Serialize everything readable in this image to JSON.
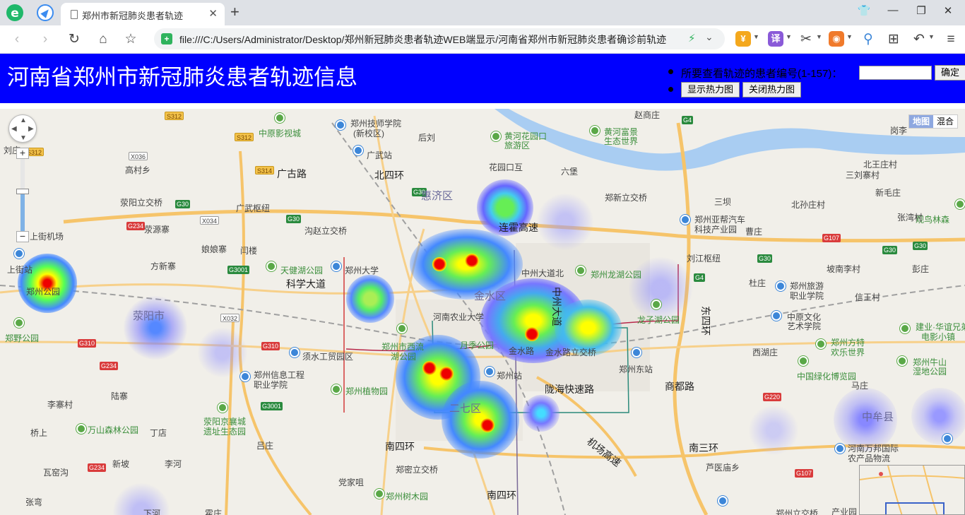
{
  "browser": {
    "tab_title": "郑州市新冠肺炎患者轨迹",
    "address": "file:///C:/Users/Administrator/Desktop/郑州新冠肺炎患者轨迹WEB端显示/河南省郑州市新冠肺炎患者确诊前轨迹"
  },
  "header": {
    "title": "河南省郑州市新冠肺炎患者轨迹信息",
    "query_label": "所要查看轨迹的患者编号(1-157)：",
    "confirm_label": "确定",
    "show_heatmap_label": "显示热力图",
    "hide_heatmap_label": "关闭热力图"
  },
  "map": {
    "maptype": {
      "map": "地图",
      "hybrid": "混合"
    },
    "labels": [
      "中原影视城",
      "郑州技师学院",
      "(新校区)",
      "后刘",
      "黄河花园口",
      "旅游区",
      "黄河富景",
      "生态世界",
      "赵商庄",
      "六堡",
      "广武站",
      "广古路",
      "北四环",
      "花园口互",
      "郑新立交桥",
      "高村乡",
      "荥阳立交桥",
      "广武枢纽",
      "惠济区",
      "连霍高速",
      "郑州亚帮汽车",
      "科技产业园",
      "观鸟林森",
      "上街机场",
      "荥源寨",
      "娘娘寨",
      "沟赵立交桥",
      "闫楼",
      "刘江枢纽",
      "上街站",
      "方新寨",
      "天健湖公园",
      "郑州大学",
      "中州大道北",
      "郑州龙湖公园",
      "坡南李村",
      "彭庄",
      "科学大道",
      "郑州旅游",
      "职业学院",
      "杜庄",
      "信王村",
      "金水区",
      "荥阳市",
      "河南农业大学",
      "龙子湖公园",
      "中原文化",
      "艺术学院",
      "西湖庄",
      "郑州市西流",
      "湖公园",
      "月季公园",
      "金水路",
      "金水路立交桥",
      "郑州方特",
      "欢乐世界",
      "郑州公园",
      "须水工贸园区",
      "郑州站",
      "郑州东站",
      "郑州信息工程",
      "职业学院",
      "郑州植物园",
      "陇海快速路",
      "商都路",
      "中国绿化博览园",
      "建业·华谊兄弟",
      "电影小镇",
      "郑州牛山",
      "湿地公园",
      "马庄",
      "陆寨",
      "李寨村",
      "二七区",
      "中牟县",
      "荥阳京襄城",
      "遗址生态园",
      "万山森林公园",
      "丁店",
      "桥上",
      "吕庄",
      "南四环",
      "机场高速",
      "南三环",
      "河南万邦国际",
      "农产品物流",
      "新坡",
      "李河",
      "瓦窑沟",
      "郑密立交桥",
      "芦医庙乡",
      "党家咀",
      "郑州树木园",
      "南四环",
      "张弯",
      "下河",
      "霍庄",
      "郑州立交桥",
      "产业园",
      "郑野公园",
      "刘庄",
      "岗李",
      "东四环",
      "北王庄村",
      "三刘寨村",
      "新毛庄",
      "三坝",
      "北孙庄村",
      "张湾村",
      "曹庄",
      "中州大道"
    ],
    "shields": [
      "S312",
      "S312",
      "S312",
      "X036",
      "S314",
      "G30",
      "G30",
      "X034",
      "G30",
      "G234",
      "G3001",
      "X032",
      "G310",
      "G310",
      "G234",
      "G3001",
      "G234",
      "G4",
      "G107",
      "G30",
      "G30",
      "G30",
      "G4",
      "G220",
      "G107"
    ]
  }
}
